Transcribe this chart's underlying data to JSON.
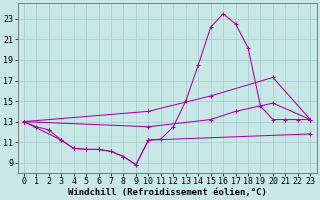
{
  "xlabel": "Windchill (Refroidissement éolien,°C)",
  "bg_color": "#c8e8e8",
  "line_color": "#aa00aa",
  "xlim": [
    -0.5,
    23.5
  ],
  "ylim": [
    8.0,
    24.5
  ],
  "xticks": [
    0,
    1,
    2,
    3,
    4,
    5,
    6,
    7,
    8,
    9,
    10,
    11,
    12,
    13,
    14,
    15,
    16,
    17,
    18,
    19,
    20,
    21,
    22,
    23
  ],
  "yticks": [
    9,
    11,
    13,
    15,
    17,
    19,
    21,
    23
  ],
  "grid_color": "#a0cccc",
  "series": [
    {
      "x": [
        0,
        1,
        2,
        3,
        4,
        5,
        6,
        7,
        8,
        9,
        10,
        11,
        12,
        13,
        14,
        15,
        16,
        17,
        18,
        19,
        20,
        21,
        22,
        23
      ],
      "y": [
        13.0,
        12.5,
        12.2,
        11.2,
        10.4,
        10.3,
        10.3,
        10.1,
        9.6,
        8.8,
        11.2,
        11.3,
        12.5,
        15.0,
        18.5,
        22.2,
        23.5,
        22.5,
        20.2,
        14.5,
        13.2,
        13.2,
        13.2,
        13.2
      ]
    },
    {
      "x": [
        0,
        10,
        15,
        20,
        23
      ],
      "y": [
        13.0,
        14.0,
        15.5,
        17.3,
        13.2
      ]
    },
    {
      "x": [
        0,
        10,
        15,
        17,
        20,
        23
      ],
      "y": [
        13.0,
        12.5,
        13.2,
        14.0,
        14.8,
        13.2
      ]
    },
    {
      "x": [
        0,
        3,
        4,
        5,
        6,
        7,
        8,
        9,
        10,
        23
      ],
      "y": [
        13.0,
        11.2,
        10.4,
        10.3,
        10.3,
        10.1,
        9.6,
        8.8,
        11.2,
        11.8
      ]
    }
  ],
  "font_family": "monospace",
  "xlabel_fontsize": 6.5,
  "tick_fontsize": 6.0
}
